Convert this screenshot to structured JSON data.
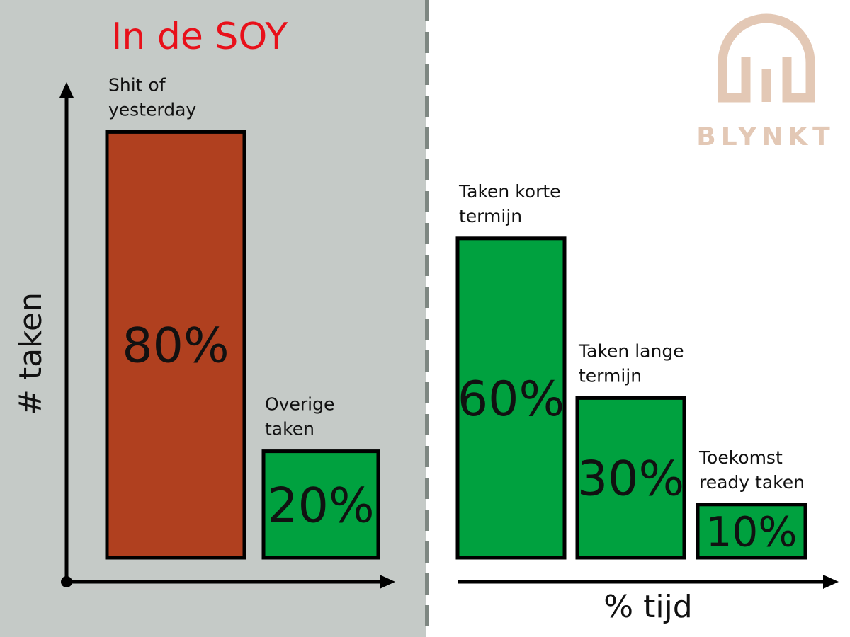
{
  "logo": {
    "text": "BLYNKT",
    "color": "#e3c8b5"
  },
  "colors": {
    "left_panel_bg": "#c5cac7",
    "divider": "#7e8782",
    "title": "#e8101a",
    "bar_red": "#b0401f",
    "bar_green": "#00a13f"
  },
  "chart_data": [
    {
      "type": "bar",
      "title": "In de SOY",
      "ylabel": "# taken",
      "xlabel": "",
      "categories": [
        [
          "Shit of",
          "yesterday"
        ],
        [
          "Overige",
          "taken"
        ]
      ],
      "values": [
        80,
        20
      ],
      "data_labels": [
        "80%",
        "20%"
      ],
      "bar_colors": [
        "#b0401f",
        "#00a13f"
      ],
      "grid": false
    },
    {
      "type": "bar",
      "title": "",
      "ylabel": "",
      "xlabel": "% tijd",
      "categories": [
        [
          "Taken korte",
          "termijn"
        ],
        [
          "Taken lange",
          "termijn"
        ],
        [
          "Toekomst",
          "ready taken"
        ]
      ],
      "values": [
        60,
        30,
        10
      ],
      "data_labels": [
        "60%",
        "30%",
        "10%"
      ],
      "bar_colors": [
        "#00a13f",
        "#00a13f",
        "#00a13f"
      ],
      "grid": false
    }
  ]
}
